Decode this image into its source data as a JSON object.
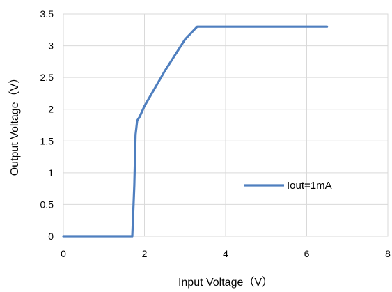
{
  "chart_data": {
    "type": "line",
    "xlabel": "Input Voltage（V）",
    "ylabel": "Output Voltage（V）",
    "xlim": [
      0,
      8
    ],
    "ylim": [
      0,
      3.5
    ],
    "x_ticks": [
      "0",
      "2",
      "4",
      "6",
      "8"
    ],
    "y_ticks": [
      "0",
      "0.5",
      "1",
      "1.5",
      "2",
      "2.5",
      "3",
      "3.5"
    ],
    "grid": true,
    "legend_position": "center-right",
    "series": [
      {
        "name": "Iout=1mA",
        "color": "#4f7fbf",
        "x": [
          0,
          1.7,
          1.75,
          1.78,
          1.82,
          1.88,
          2.0,
          2.5,
          3.0,
          3.3,
          6.5
        ],
        "y": [
          0,
          0,
          0.8,
          1.6,
          1.82,
          1.88,
          2.05,
          2.6,
          3.1,
          3.3,
          3.3
        ]
      }
    ]
  }
}
